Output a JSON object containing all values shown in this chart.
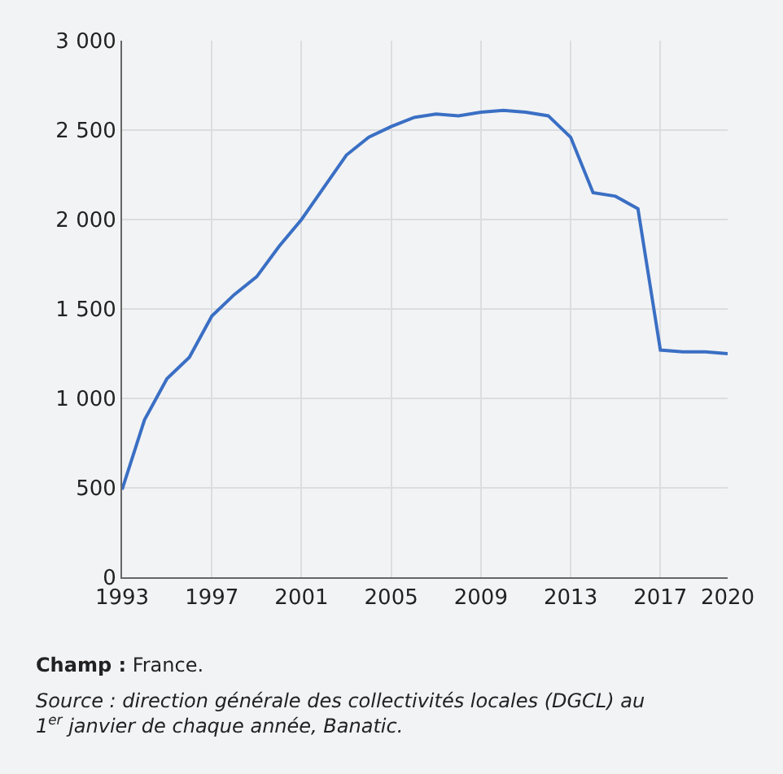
{
  "chart_data": {
    "type": "line",
    "x": [
      1993,
      1994,
      1995,
      1996,
      1997,
      1998,
      1999,
      2000,
      2001,
      2002,
      2003,
      2004,
      2005,
      2006,
      2007,
      2008,
      2009,
      2010,
      2011,
      2012,
      2013,
      2014,
      2015,
      2016,
      2017,
      2018,
      2019,
      2020
    ],
    "series": [
      {
        "color": "#3a6fc4",
        "values": [
          490,
          880,
          1110,
          1230,
          1460,
          1580,
          1680,
          1850,
          2000,
          2180,
          2360,
          2460,
          2520,
          2570,
          2590,
          2580,
          2600,
          2610,
          2600,
          2580,
          2460,
          2150,
          2130,
          2060,
          1270,
          1260,
          1260,
          1250
        ]
      }
    ],
    "xlim": [
      1993,
      2020
    ],
    "xticks": [
      1993,
      1997,
      2001,
      2005,
      2009,
      2013,
      2017,
      2020
    ],
    "ylim": [
      0,
      3000
    ],
    "yticks": [
      0,
      500,
      {
        "value": 1000,
        "label": "1 000"
      },
      {
        "value": 1500,
        "label": "1 500"
      },
      {
        "value": 2000,
        "label": "2 000"
      },
      {
        "value": 2500,
        "label": "2 500"
      },
      {
        "value": 3000,
        "label": "3 000"
      }
    ],
    "grid": true,
    "marker": "none",
    "line_style": "solid",
    "annotations": [
      "Champ : France.",
      "Source : direction générale des collectivités locales (DGCL) au 1$^{er}$ janvier de chaque année, Banatic."
    ]
  }
}
